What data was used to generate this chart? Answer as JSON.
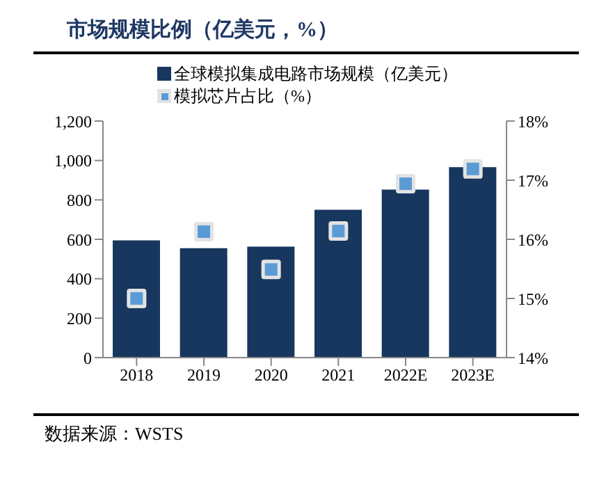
{
  "chart_data": {
    "type": "bar",
    "title": "市场规模比例（亿美元，%）",
    "categories": [
      "2018",
      "2019",
      "2020",
      "2021",
      "2022E",
      "2023E"
    ],
    "series": [
      {
        "name": "全球模拟集成电路市场规模（亿美元）",
        "color": "#17375e",
        "values": [
          595,
          555,
          563,
          750,
          852,
          966
        ]
      },
      {
        "name": "模拟芯片占比（%）",
        "type": "scatter",
        "axis": "y2",
        "marker": "square",
        "color": "#5b9bd5",
        "values": [
          15.0,
          16.13,
          15.49,
          16.14,
          16.94,
          17.19
        ]
      }
    ],
    "ylim": [
      0,
      1200
    ],
    "yticks": [
      0,
      200,
      400,
      600,
      800,
      {
        "value": 1000,
        "label": "1,000"
      },
      {
        "value": 1200,
        "label": "1,200"
      }
    ],
    "y2lim": [
      14,
      18
    ],
    "y2ticks": [
      {
        "value": 14,
        "label": "14%"
      },
      {
        "value": 15,
        "label": "15%"
      },
      {
        "value": 16,
        "label": "16%"
      },
      {
        "value": 17,
        "label": "17%"
      },
      {
        "value": 18,
        "label": "18%"
      }
    ],
    "legend": "top",
    "annotations": [
      "数据来源：WSTS"
    ]
  }
}
